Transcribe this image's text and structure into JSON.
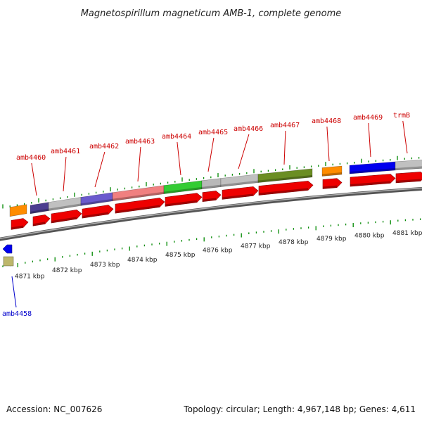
{
  "title": "Magnetospirillum magneticum AMB-1, complete genome",
  "footer": {
    "accession": "Accession: NC_007626",
    "topology": "Topology: circular; Length: 4,967,148 bp; Genes: 4,611"
  },
  "colors": {
    "strand_arrow": "#ee0000",
    "backbone": "#888888",
    "tick": "#008800",
    "label_pos": "#cc0000",
    "label_neg": "#0000cc"
  },
  "kbp_ticks": [
    {
      "kbp": 4871,
      "label": "4871 kbp"
    },
    {
      "kbp": 4872,
      "label": "4872 kbp"
    },
    {
      "kbp": 4873,
      "label": "4873 kbp"
    },
    {
      "kbp": 4874,
      "label": "4874 kbp"
    },
    {
      "kbp": 4875,
      "label": "4875 kbp"
    },
    {
      "kbp": 4876,
      "label": "4876 kbp"
    },
    {
      "kbp": 4877,
      "label": "4877 kbp"
    },
    {
      "kbp": 4878,
      "label": "4878 kbp"
    },
    {
      "kbp": 4879,
      "label": "4879 kbp"
    },
    {
      "kbp": 4880,
      "label": "4880 kbp"
    },
    {
      "kbp": 4881,
      "label": "4881 kbp"
    }
  ],
  "genes_labeled": [
    {
      "label": "amb4460",
      "color": "#4b3f8f"
    },
    {
      "label": "amb4461",
      "color": "#c0c0c0"
    },
    {
      "label": "amb4462",
      "color": "#6a5acd"
    },
    {
      "label": "amb4463",
      "color": "#f08080"
    },
    {
      "label": "amb4464",
      "color": "#33cc33"
    },
    {
      "label": "amb4465",
      "color": "#b8b8b8"
    },
    {
      "label": "amb4466",
      "color": "#c0c0c0"
    },
    {
      "label": "amb4467",
      "color": "#6b8e23"
    },
    {
      "label": "amb4468",
      "color": "#ff8c00"
    },
    {
      "label": "amb4469",
      "color": "#0000ee"
    },
    {
      "label": "trmB",
      "color": "#c0c0c0"
    }
  ],
  "genes_other": [
    {
      "name": "orange-gene-box",
      "color": "#ff8c00"
    }
  ],
  "neg_strand": {
    "label": "amb4458",
    "arrow_color": "#0000ee",
    "box_color": "#bdb76b"
  }
}
